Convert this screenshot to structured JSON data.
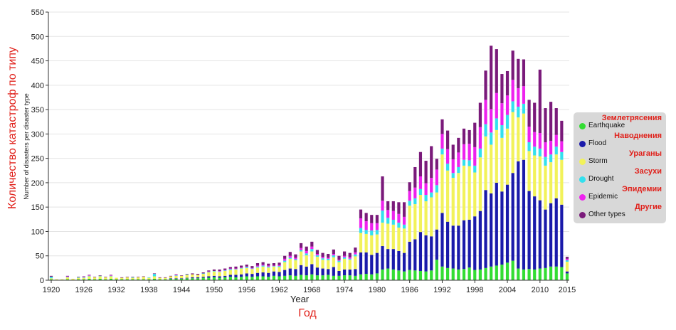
{
  "titles": {
    "y_ru": "Количество катастроф по типу",
    "x_ru": "Год"
  },
  "legend_ru": [
    "Землетрясения",
    "Наводнения",
    "Ураганы",
    "Засухи",
    "Эпидемии",
    "Другие"
  ],
  "chart_data": {
    "type": "bar",
    "stacked": true,
    "xlabel": "Year",
    "ylabel": "Number of disasters per disaster type",
    "ylim": [
      0,
      550
    ],
    "yticks": [
      0,
      50,
      100,
      150,
      200,
      250,
      300,
      350,
      400,
      450,
      500,
      550
    ],
    "xticks": [
      1920,
      1926,
      1932,
      1938,
      1944,
      1950,
      1956,
      1962,
      1968,
      1974,
      1980,
      1986,
      1992,
      1998,
      2004,
      2010,
      2015
    ],
    "grid": "horizontal",
    "legend_position": "right",
    "categories": [
      1920,
      1921,
      1922,
      1923,
      1924,
      1925,
      1926,
      1927,
      1928,
      1929,
      1930,
      1931,
      1932,
      1933,
      1934,
      1935,
      1936,
      1937,
      1938,
      1939,
      1940,
      1941,
      1942,
      1943,
      1944,
      1945,
      1946,
      1947,
      1948,
      1949,
      1950,
      1951,
      1952,
      1953,
      1954,
      1955,
      1956,
      1957,
      1958,
      1959,
      1960,
      1961,
      1962,
      1963,
      1964,
      1965,
      1966,
      1967,
      1968,
      1969,
      1970,
      1971,
      1972,
      1973,
      1974,
      1975,
      1976,
      1977,
      1978,
      1979,
      1980,
      1981,
      1982,
      1983,
      1984,
      1985,
      1986,
      1987,
      1988,
      1989,
      1990,
      1991,
      1992,
      1993,
      1994,
      1995,
      1996,
      1997,
      1998,
      1999,
      2000,
      2001,
      2002,
      2003,
      2004,
      2005,
      2006,
      2007,
      2008,
      2009,
      2010,
      2011,
      2012,
      2013,
      2014,
      2015
    ],
    "series": [
      {
        "name": "Earthquake",
        "color": "#33dd33",
        "values": [
          2,
          1,
          1,
          2,
          1,
          2,
          2,
          3,
          2,
          3,
          2,
          3,
          2,
          2,
          2,
          2,
          2,
          2,
          2,
          3,
          2,
          2,
          3,
          3,
          3,
          4,
          4,
          4,
          5,
          5,
          6,
          5,
          6,
          7,
          6,
          7,
          8,
          7,
          8,
          8,
          7,
          9,
          8,
          9,
          10,
          9,
          11,
          10,
          12,
          10,
          10,
          11,
          9,
          9,
          10,
          10,
          9,
          12,
          13,
          12,
          14,
          22,
          24,
          22,
          20,
          18,
          21,
          20,
          19,
          18,
          20,
          42,
          28,
          25,
          24,
          22,
          23,
          26,
          21,
          22,
          25,
          28,
          30,
          32,
          36,
          40,
          24,
          22,
          23,
          22,
          24,
          25,
          28,
          28,
          27,
          14
        ]
      },
      {
        "name": "Flood",
        "color": "#1a1aaa",
        "values": [
          0,
          0,
          0,
          0,
          0,
          0,
          0,
          0,
          0,
          0,
          0,
          0,
          0,
          0,
          0,
          0,
          0,
          0,
          0,
          0,
          0,
          0,
          1,
          1,
          1,
          1,
          2,
          2,
          2,
          3,
          3,
          3,
          3,
          4,
          5,
          5,
          6,
          6,
          7,
          8,
          8,
          9,
          9,
          12,
          14,
          14,
          20,
          18,
          21,
          16,
          14,
          12,
          18,
          10,
          12,
          12,
          14,
          45,
          44,
          40,
          42,
          48,
          40,
          42,
          40,
          38,
          58,
          64,
          80,
          74,
          70,
          62,
          110,
          95,
          88,
          90,
          100,
          98,
          110,
          120,
          160,
          150,
          170,
          150,
          160,
          180,
          220,
          225,
          160,
          150,
          140,
          120,
          130,
          140,
          128,
          4
        ]
      },
      {
        "name": "Storm",
        "color": "#f2f25a",
        "values": [
          2,
          1,
          1,
          4,
          2,
          3,
          3,
          5,
          4,
          5,
          4,
          5,
          3,
          3,
          4,
          3,
          4,
          5,
          3,
          5,
          3,
          3,
          4,
          5,
          5,
          6,
          6,
          5,
          6,
          8,
          9,
          9,
          10,
          10,
          11,
          12,
          11,
          10,
          11,
          12,
          11,
          10,
          10,
          16,
          20,
          18,
          28,
          23,
          26,
          22,
          18,
          18,
          20,
          18,
          22,
          20,
          26,
          40,
          38,
          40,
          38,
          48,
          52,
          50,
          48,
          50,
          74,
          72,
          76,
          70,
          80,
          76,
          120,
          105,
          98,
          108,
          112,
          110,
          90,
          110,
          110,
          100,
          108,
          110,
          115,
          125,
          90,
          95,
          82,
          84,
          90,
          90,
          84,
          90,
          92,
          20
        ]
      },
      {
        "name": "Drought",
        "color": "#33e0ee",
        "values": [
          3,
          0,
          0,
          1,
          0,
          1,
          1,
          1,
          0,
          1,
          0,
          1,
          0,
          0,
          0,
          1,
          0,
          0,
          1,
          5,
          0,
          0,
          0,
          1,
          0,
          1,
          0,
          0,
          1,
          1,
          1,
          1,
          1,
          2,
          1,
          1,
          2,
          1,
          2,
          2,
          2,
          1,
          2,
          3,
          2,
          2,
          3,
          4,
          5,
          3,
          3,
          3,
          4,
          3,
          3,
          2,
          4,
          10,
          8,
          10,
          9,
          25,
          12,
          10,
          10,
          8,
          10,
          12,
          12,
          13,
          10,
          15,
          12,
          14,
          10,
          12,
          12,
          12,
          14,
          18,
          25,
          25,
          24,
          26,
          28,
          22,
          22,
          20,
          18,
          18,
          16,
          18,
          16,
          16,
          16,
          3
        ]
      },
      {
        "name": "Epidemic",
        "color": "#ee22ee",
        "values": [
          0,
          0,
          0,
          1,
          0,
          0,
          1,
          1,
          0,
          0,
          0,
          1,
          0,
          0,
          0,
          0,
          0,
          0,
          0,
          0,
          0,
          0,
          0,
          1,
          0,
          0,
          0,
          0,
          0,
          1,
          0,
          1,
          1,
          1,
          1,
          1,
          1,
          1,
          2,
          2,
          2,
          1,
          2,
          4,
          4,
          3,
          4,
          5,
          5,
          3,
          3,
          2,
          3,
          2,
          3,
          3,
          4,
          20,
          18,
          15,
          14,
          20,
          16,
          18,
          18,
          16,
          20,
          22,
          26,
          24,
          30,
          32,
          30,
          30,
          28,
          30,
          32,
          34,
          38,
          44,
          50,
          48,
          52,
          45,
          40,
          44,
          38,
          36,
          32,
          30,
          32,
          30,
          28,
          24,
          22,
          3
        ]
      },
      {
        "name": "Other types",
        "color": "#7a1a7a",
        "values": [
          2,
          0,
          0,
          1,
          0,
          1,
          1,
          1,
          1,
          1,
          1,
          1,
          0,
          1,
          1,
          1,
          1,
          1,
          0,
          1,
          1,
          1,
          1,
          1,
          1,
          1,
          2,
          2,
          2,
          2,
          3,
          3,
          3,
          3,
          4,
          4,
          4,
          4,
          5,
          5,
          4,
          5,
          5,
          6,
          8,
          7,
          10,
          9,
          10,
          8,
          8,
          8,
          9,
          8,
          9,
          9,
          10,
          18,
          17,
          17,
          17,
          50,
          18,
          20,
          24,
          30,
          18,
          42,
          50,
          46,
          65,
          22,
          30,
          38,
          30,
          30,
          32,
          28,
          50,
          50,
          60,
          130,
          90,
          60,
          50,
          60,
          60,
          55,
          55,
          60,
          130,
          70,
          80,
          55,
          42,
          4
        ]
      }
    ]
  }
}
